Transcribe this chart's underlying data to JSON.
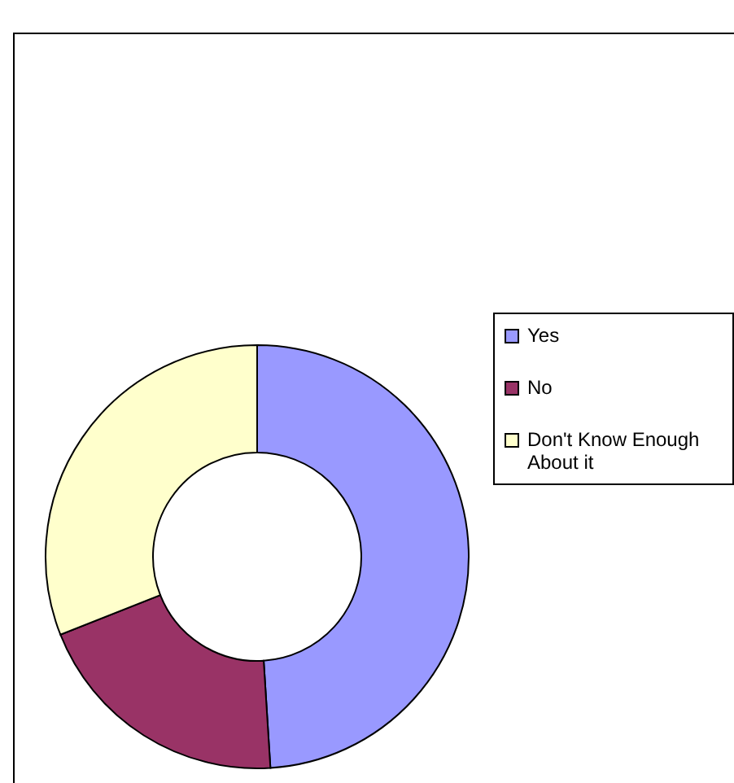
{
  "chart_data": {
    "type": "donut",
    "categories": [
      "Yes",
      "No",
      "Don't Know Enough About it"
    ],
    "values": [
      49,
      20,
      31
    ],
    "colors": [
      "#9999ff",
      "#993366",
      "#ffffcc"
    ],
    "legend": "right"
  }
}
